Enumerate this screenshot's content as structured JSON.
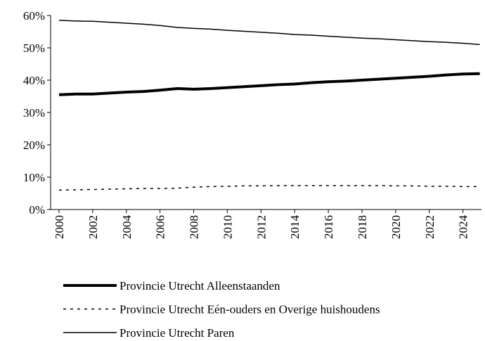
{
  "chart_data": {
    "type": "line",
    "x": [
      2000,
      2001,
      2002,
      2003,
      2004,
      2005,
      2006,
      2007,
      2008,
      2009,
      2010,
      2011,
      2012,
      2013,
      2014,
      2015,
      2016,
      2017,
      2018,
      2019,
      2020,
      2021,
      2022,
      2023,
      2024,
      2025
    ],
    "series": [
      {
        "name": "Provincie Utrecht Alleenstaanden",
        "color": "#000000",
        "style": "thick",
        "values": [
          35.5,
          35.7,
          35.7,
          36.0,
          36.3,
          36.5,
          36.9,
          37.4,
          37.2,
          37.4,
          37.7,
          38.0,
          38.3,
          38.6,
          38.8,
          39.2,
          39.5,
          39.7,
          40.0,
          40.3,
          40.6,
          40.9,
          41.2,
          41.6,
          41.9,
          42.0
        ]
      },
      {
        "name": "Provincie Utrecht Eén-ouders en Overige huishoudens",
        "color": "#000000",
        "style": "dashed",
        "values": [
          6.0,
          6.1,
          6.2,
          6.3,
          6.4,
          6.5,
          6.5,
          6.6,
          6.9,
          7.1,
          7.2,
          7.3,
          7.3,
          7.4,
          7.4,
          7.4,
          7.4,
          7.4,
          7.4,
          7.4,
          7.3,
          7.3,
          7.2,
          7.2,
          7.1,
          7.1
        ]
      },
      {
        "name": "Provincie Utrecht Paren",
        "color": "#000000",
        "style": "thin",
        "values": [
          58.5,
          58.3,
          58.2,
          57.9,
          57.6,
          57.3,
          56.9,
          56.3,
          56.0,
          55.8,
          55.4,
          55.1,
          54.8,
          54.5,
          54.1,
          53.9,
          53.6,
          53.3,
          53.0,
          52.8,
          52.5,
          52.2,
          51.9,
          51.7,
          51.4,
          51.0
        ]
      }
    ],
    "xlim": [
      1999.5,
      2025.1
    ],
    "xticks": [
      2000,
      2002,
      2004,
      2006,
      2008,
      2010,
      2012,
      2014,
      2016,
      2018,
      2020,
      2022,
      2024
    ],
    "ylim": [
      0,
      60
    ],
    "yticks": [
      {
        "value": 0,
        "label": "0%"
      },
      {
        "value": 10,
        "label": "10%"
      },
      {
        "value": 20,
        "label": "20%"
      },
      {
        "value": 30,
        "label": "30%"
      },
      {
        "value": 40,
        "label": "40%"
      },
      {
        "value": 50,
        "label": "50%"
      },
      {
        "value": 60,
        "label": "60%"
      }
    ],
    "legend": "bottom"
  }
}
